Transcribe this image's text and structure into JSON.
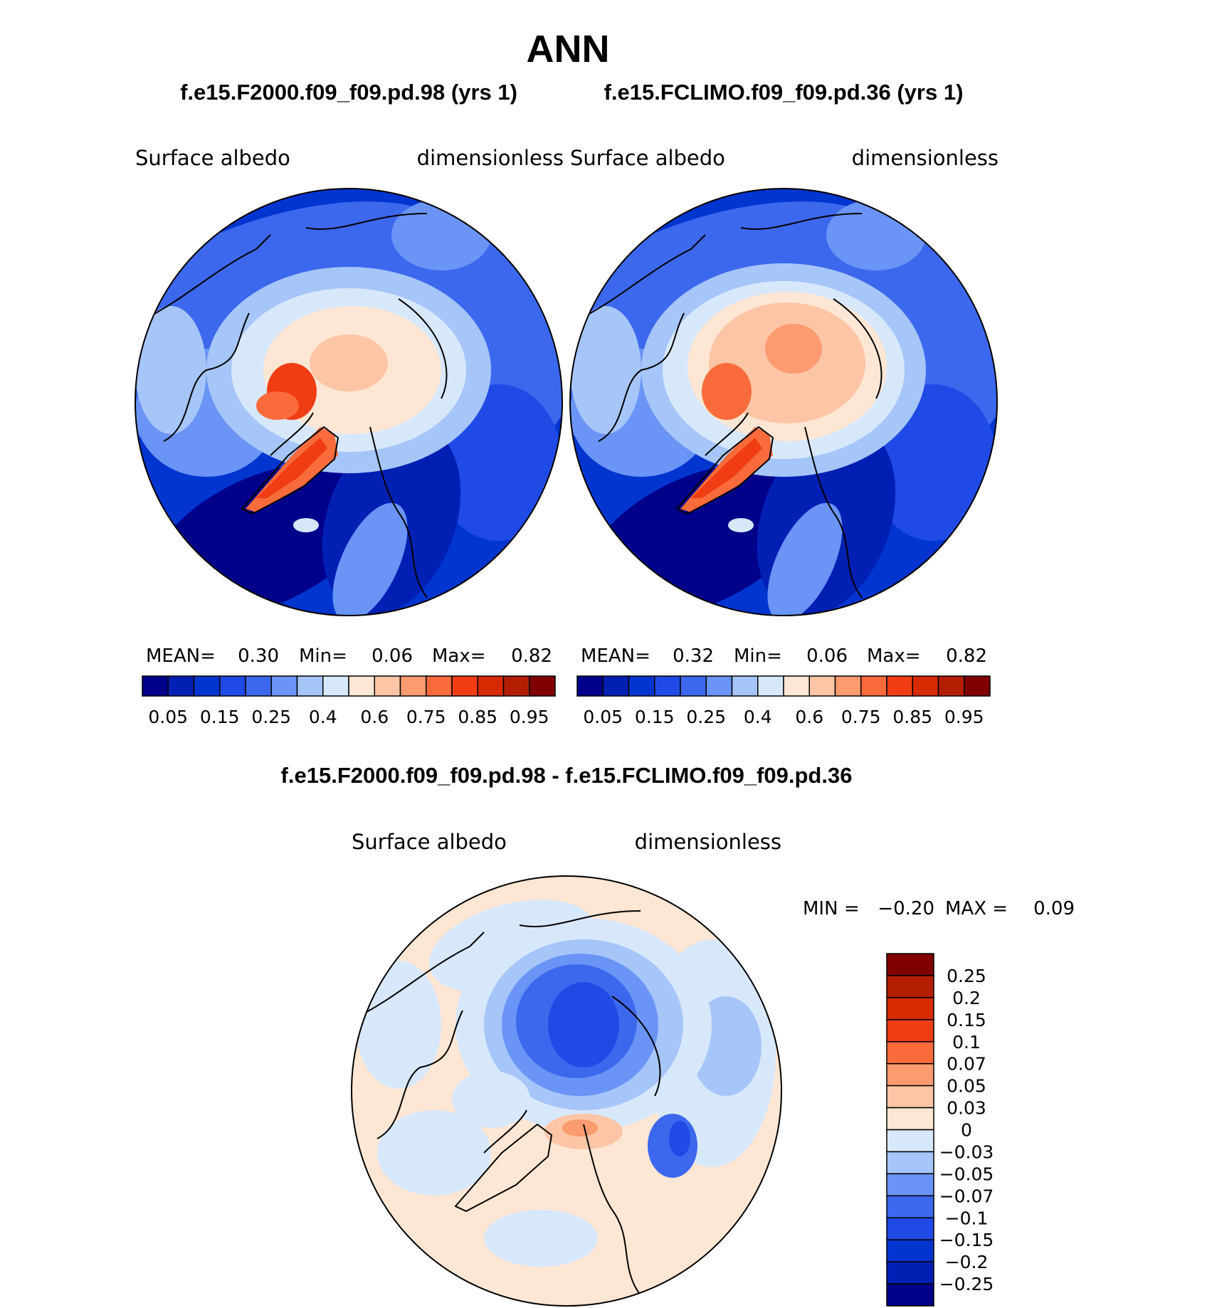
{
  "figure": {
    "season": "ANN"
  },
  "colors": {
    "abs_scale": [
      "#00008b",
      "#0020b4",
      "#0035d0",
      "#1f4ae6",
      "#3c68ee",
      "#6a94f5",
      "#a6c5f8",
      "#d8e8fb",
      "#fde6d4",
      "#fcc5a5",
      "#fc9a70",
      "#fa6b3c",
      "#f03d14",
      "#d62a00",
      "#b31e00",
      "#800000"
    ],
    "diff_scale": [
      "#00008b",
      "#0020b4",
      "#0035d0",
      "#1f4ae6",
      "#3c68ee",
      "#6a94f5",
      "#a6c5f8",
      "#d8e8fb",
      "#fde6d4",
      "#fcc5a5",
      "#fc9a70",
      "#fa6b3c",
      "#f03d14",
      "#d62a00",
      "#b31e00",
      "#800000"
    ]
  },
  "panels": [
    {
      "case": "f.e15.F2000.f09_f09.pd.98 (yrs 1)",
      "variable": "Surface  albedo",
      "units": "dimensionless",
      "mean_label": "MEAN=",
      "mean": "0.30",
      "min_label": "Min=",
      "min": "0.06",
      "max_label": "Max=",
      "max": "0.82"
    },
    {
      "case": "f.e15.FCLIMO.f09_f09.pd.36 (yrs 1)",
      "variable": "Surface  albedo",
      "units": "dimensionless",
      "mean_label": "MEAN=",
      "mean": "0.32",
      "min_label": "Min=",
      "min": "0.06",
      "max_label": "Max=",
      "max": "0.82"
    }
  ],
  "abs_colorbar_labels": [
    "0.05",
    "0.15",
    "0.25",
    "0.4",
    "0.6",
    "0.75",
    "0.85",
    "0.95"
  ],
  "diff_panel": {
    "title": "f.e15.F2000.f09_f09.pd.98 - f.e15.FCLIMO.f09_f09.pd.36",
    "variable": "Surface  albedo",
    "units": "dimensionless",
    "min_label": "MIN =",
    "min": "−0.20",
    "max_label": "MAX =",
    "max": "0.09",
    "colorbar_labels": [
      "0.25",
      "0.2",
      "0.15",
      "0.1",
      "0.07",
      "0.05",
      "0.03",
      "0",
      "−0.03",
      "−0.05",
      "−0.07",
      "−0.1",
      "−0.15",
      "−0.2",
      "−0.25"
    ]
  }
}
